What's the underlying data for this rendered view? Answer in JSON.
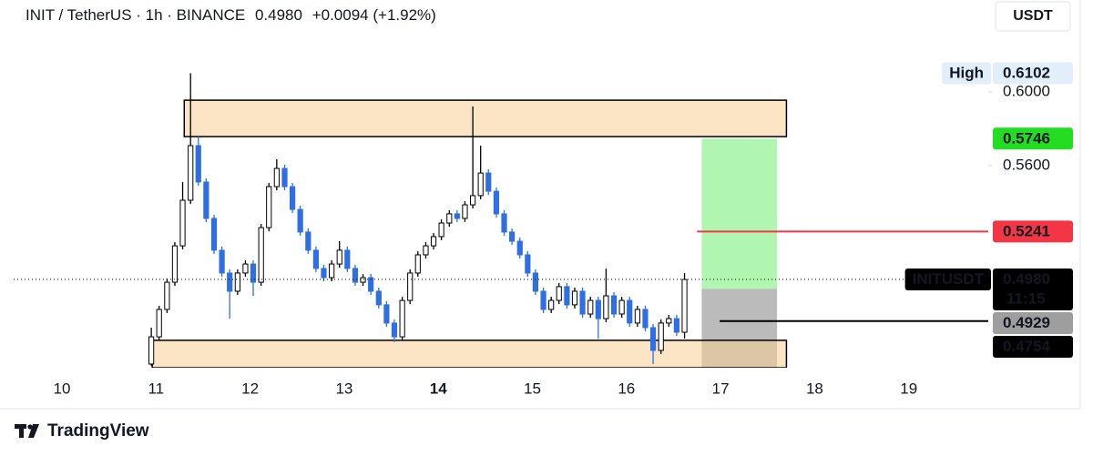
{
  "header": {
    "symbol": "INIT / TetherUS · 1h · BINANCE",
    "price": "0.4980",
    "change": "+0.0094 (+1.92%)"
  },
  "currency_button": "USDT",
  "footer": {
    "brand": "TradingView"
  },
  "chart_data": {
    "type": "candlestick",
    "x": [
      10.95,
      11.033,
      11.117,
      11.2,
      11.283,
      11.367,
      11.45,
      11.533,
      11.617,
      11.7,
      11.783,
      11.867,
      11.95,
      12.033,
      12.117,
      12.2,
      12.283,
      12.367,
      12.45,
      12.533,
      12.617,
      12.7,
      12.783,
      12.867,
      12.95,
      13.033,
      13.117,
      13.2,
      13.283,
      13.367,
      13.45,
      13.533,
      13.617,
      13.7,
      13.783,
      13.867,
      13.95,
      14.033,
      14.117,
      14.2,
      14.283,
      14.367,
      14.45,
      14.533,
      14.617,
      14.7,
      14.783,
      14.867,
      14.95,
      15.033,
      15.117,
      15.2,
      15.283,
      15.367,
      15.45,
      15.533,
      15.617,
      15.7,
      15.783,
      15.867,
      15.95,
      16.033,
      16.117,
      16.2,
      16.283,
      16.367,
      16.45,
      16.533,
      16.617
    ],
    "open": [
      0.452,
      0.4668,
      0.4817,
      0.4965,
      0.5163,
      0.5411,
      0.5708,
      0.551,
      0.5312,
      0.5139,
      0.5015,
      0.4916,
      0.5015,
      0.5064,
      0.4965,
      0.5262,
      0.5485,
      0.5584,
      0.5485,
      0.5361,
      0.5238,
      0.5139,
      0.504,
      0.499,
      0.5064,
      0.5139,
      0.504,
      0.4965,
      0.499,
      0.4916,
      0.4842,
      0.4743,
      0.4668,
      0.4866,
      0.5015,
      0.5114,
      0.5163,
      0.5213,
      0.5287,
      0.5337,
      0.5312,
      0.5386,
      0.5436,
      0.5559,
      0.546,
      0.5337,
      0.5238,
      0.5188,
      0.5114,
      0.5015,
      0.4916,
      0.4817,
      0.4866,
      0.4941,
      0.4842,
      0.4916,
      0.4792,
      0.4866,
      0.4767,
      0.4891,
      0.4792,
      0.4866,
      0.4743,
      0.4817,
      0.4718,
      0.4594,
      0.4743,
      0.4767,
      0.4693
    ],
    "high": [
      0.4718,
      0.4837,
      0.4985,
      0.5183,
      0.551,
      0.6102,
      0.5757,
      0.553,
      0.5332,
      0.5159,
      0.5035,
      0.5035,
      0.5084,
      0.5084,
      0.5282,
      0.5505,
      0.5634,
      0.5604,
      0.5505,
      0.5381,
      0.5258,
      0.5159,
      0.506,
      0.5084,
      0.5188,
      0.5159,
      0.506,
      0.501,
      0.501,
      0.4936,
      0.4862,
      0.4763,
      0.4886,
      0.5035,
      0.5134,
      0.5183,
      0.5233,
      0.5307,
      0.5357,
      0.5357,
      0.5406,
      0.5921,
      0.5708,
      0.5579,
      0.548,
      0.5357,
      0.5258,
      0.5208,
      0.5134,
      0.5035,
      0.4936,
      0.4886,
      0.4961,
      0.4961,
      0.4936,
      0.4936,
      0.4886,
      0.4886,
      0.504,
      0.4911,
      0.4886,
      0.4886,
      0.4837,
      0.4837,
      0.4738,
      0.4763,
      0.4787,
      0.4787,
      0.5015
    ],
    "low": [
      0.451,
      0.4648,
      0.4797,
      0.4945,
      0.5143,
      0.5391,
      0.549,
      0.5292,
      0.5119,
      0.4995,
      0.4767,
      0.4896,
      0.4995,
      0.4891,
      0.4945,
      0.5242,
      0.5465,
      0.5465,
      0.5341,
      0.5218,
      0.5119,
      0.502,
      0.497,
      0.497,
      0.5044,
      0.502,
      0.4945,
      0.4945,
      0.4896,
      0.4822,
      0.4723,
      0.4639,
      0.4648,
      0.4846,
      0.4995,
      0.5094,
      0.5143,
      0.5193,
      0.5267,
      0.5292,
      0.5292,
      0.5366,
      0.5416,
      0.544,
      0.5317,
      0.5218,
      0.5168,
      0.5094,
      0.4995,
      0.4896,
      0.4797,
      0.4797,
      0.4846,
      0.4822,
      0.4822,
      0.4772,
      0.4772,
      0.4658,
      0.4747,
      0.4772,
      0.4772,
      0.4723,
      0.4723,
      0.4698,
      0.452,
      0.4574,
      0.4723,
      0.4673,
      0.4658
    ],
    "close": [
      0.4668,
      0.4817,
      0.4965,
      0.5163,
      0.5411,
      0.5708,
      0.551,
      0.5312,
      0.5139,
      0.5015,
      0.4916,
      0.5015,
      0.5064,
      0.4965,
      0.5262,
      0.5485,
      0.5584,
      0.5485,
      0.5361,
      0.5238,
      0.5139,
      0.504,
      0.499,
      0.5064,
      0.5139,
      0.504,
      0.4965,
      0.499,
      0.4916,
      0.4842,
      0.4743,
      0.4668,
      0.4866,
      0.5015,
      0.5114,
      0.5163,
      0.5213,
      0.5287,
      0.5337,
      0.5312,
      0.5386,
      0.5436,
      0.5559,
      0.546,
      0.5337,
      0.5238,
      0.5188,
      0.5114,
      0.5015,
      0.4916,
      0.4817,
      0.4866,
      0.4941,
      0.4842,
      0.4916,
      0.4792,
      0.4866,
      0.4767,
      0.4891,
      0.4792,
      0.4866,
      0.4743,
      0.4817,
      0.4718,
      0.4594,
      0.4743,
      0.4767,
      0.4693,
      0.498
    ],
    "up_color": "#ffffff",
    "down_color": "#2f6fe3",
    "wick_color": "#000000",
    "xlim": [
      9.487,
      19.845
    ],
    "ylim": [
      0.45,
      0.6302
    ],
    "xticks": [
      10,
      11,
      12,
      13,
      14,
      15,
      16,
      17,
      18,
      19
    ],
    "emphasized_xticks": [
      14
    ],
    "yticks": [
      {
        "value": 0.56,
        "label": "0.5600"
      },
      {
        "value": 0.6,
        "label": "0.6000"
      }
    ],
    "grid": false,
    "zones": [
      {
        "x": [
          16.8,
          17.6
        ],
        "y": [
          0.4929,
          0.5746
        ],
        "color": "#7cf07c",
        "opacity": 0.6
      },
      {
        "x": [
          16.8,
          17.6
        ],
        "y": [
          0.45,
          0.4929
        ],
        "color": "#9e9e9e",
        "opacity": 0.7
      },
      {
        "x": [
          11.3,
          17.7
        ],
        "y": [
          0.5757,
          0.5955
        ],
        "color": "#f9cf95",
        "opacity": 0.55,
        "border": "#000000"
      },
      {
        "x": [
          10.96,
          17.7
        ],
        "y": [
          0.45,
          0.4649
        ],
        "color": "#f9cf95",
        "opacity": 0.55,
        "border": "#000000"
      }
    ],
    "tags": [
      {
        "label": "High",
        "value": 0.6102,
        "color": "#e3eefb",
        "text_color": "#131722"
      },
      {
        "value": 0.5746,
        "color": "#22dd22",
        "text_color": "#000000"
      },
      {
        "value": 0.5241,
        "color": "#f23645",
        "text_color": "#ffffff",
        "line_from": 16.75
      },
      {
        "label": "INITUSDT",
        "value": 0.498,
        "value_label": "0.4980",
        "countdown": "11:15",
        "color": "#000000",
        "text_color": "#ffffff",
        "line_style": "dotted"
      },
      {
        "value": 0.4929,
        "color": "#9e9e9e",
        "text_color": "#ffffff"
      },
      {
        "value": 0.4754,
        "color": "#000000",
        "text_color": "#ffffff",
        "line_from": 16.99
      }
    ]
  }
}
